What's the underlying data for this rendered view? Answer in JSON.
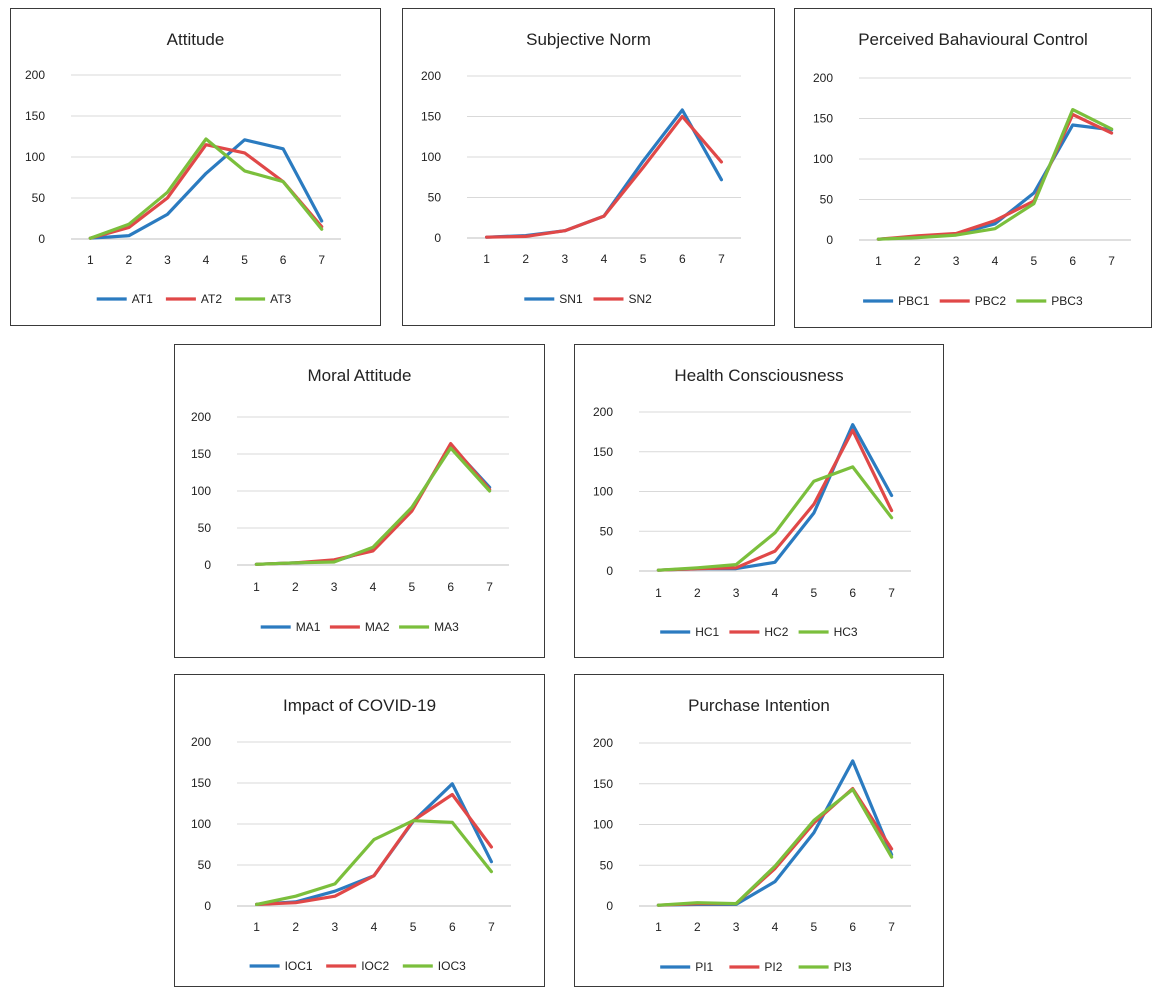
{
  "colors": {
    "series1": "#2b7bc0",
    "series2": "#e04848",
    "series3": "#7bbf3c",
    "grid": "#d9d9d9"
  },
  "chart_data": [
    {
      "type": "line",
      "title": "Attitude",
      "x": [
        1,
        2,
        3,
        4,
        5,
        6,
        7
      ],
      "y_ticks": [
        0,
        50,
        100,
        150,
        200
      ],
      "ylim": [
        0,
        200
      ],
      "grid": true,
      "legend": "bottom",
      "series": [
        {
          "name": "AT1",
          "values": [
            1,
            4,
            30,
            80,
            121,
            110,
            22
          ]
        },
        {
          "name": "AT2",
          "values": [
            1,
            14,
            50,
            115,
            105,
            70,
            15
          ]
        },
        {
          "name": "AT3",
          "values": [
            1,
            18,
            57,
            122,
            83,
            70,
            12
          ]
        }
      ]
    },
    {
      "type": "line",
      "title": "Subjective Norm",
      "x": [
        1,
        2,
        3,
        4,
        5,
        6,
        7
      ],
      "y_ticks": [
        0,
        50,
        100,
        150,
        200
      ],
      "ylim": [
        0,
        200
      ],
      "grid": true,
      "legend": "bottom",
      "series": [
        {
          "name": "SN1",
          "values": [
            1,
            3,
            9,
            27,
            95,
            158,
            72
          ]
        },
        {
          "name": "SN2",
          "values": [
            1,
            2,
            9,
            27,
            87,
            150,
            94
          ]
        }
      ]
    },
    {
      "type": "line",
      "title": "Perceived Bahavioural Control",
      "x": [
        1,
        2,
        3,
        4,
        5,
        6,
        7
      ],
      "y_ticks": [
        0,
        50,
        100,
        150,
        200
      ],
      "ylim": [
        0,
        200
      ],
      "grid": true,
      "legend": "bottom",
      "series": [
        {
          "name": "PBC1",
          "values": [
            1,
            4,
            7,
            20,
            58,
            142,
            136
          ]
        },
        {
          "name": "PBC2",
          "values": [
            1,
            5,
            8,
            24,
            48,
            155,
            132
          ]
        },
        {
          "name": "PBC3",
          "values": [
            1,
            3,
            6,
            14,
            45,
            161,
            137
          ]
        }
      ]
    },
    {
      "type": "line",
      "title": "Moral Attitude",
      "x": [
        1,
        2,
        3,
        4,
        5,
        6,
        7
      ],
      "y_ticks": [
        0,
        50,
        100,
        150,
        200
      ],
      "ylim": [
        0,
        200
      ],
      "grid": true,
      "legend": "bottom",
      "series": [
        {
          "name": "MA1",
          "values": [
            1,
            3,
            5,
            21,
            75,
            162,
            105
          ]
        },
        {
          "name": "MA2",
          "values": [
            1,
            3,
            7,
            19,
            73,
            164,
            102
          ]
        },
        {
          "name": "MA3",
          "values": [
            1,
            3,
            4,
            24,
            78,
            158,
            100
          ]
        }
      ]
    },
    {
      "type": "line",
      "title": "Health Consciousness",
      "x": [
        1,
        2,
        3,
        4,
        5,
        6,
        7
      ],
      "y_ticks": [
        0,
        50,
        100,
        150,
        200
      ],
      "ylim": [
        0,
        200
      ],
      "grid": true,
      "legend": "bottom",
      "series": [
        {
          "name": "HC1",
          "values": [
            1,
            3,
            3,
            11,
            73,
            184,
            95
          ]
        },
        {
          "name": "HC2",
          "values": [
            1,
            3,
            4,
            25,
            84,
            177,
            76
          ]
        },
        {
          "name": "HC3",
          "values": [
            1,
            4,
            8,
            48,
            113,
            131,
            67
          ]
        }
      ]
    },
    {
      "type": "line",
      "title": "Impact of COVID-19",
      "x": [
        1,
        2,
        3,
        4,
        5,
        6,
        7
      ],
      "y_ticks": [
        0,
        50,
        100,
        150,
        200
      ],
      "ylim": [
        0,
        200
      ],
      "grid": true,
      "legend": "bottom",
      "series": [
        {
          "name": "IOC1",
          "values": [
            2,
            5,
            18,
            37,
            103,
            149,
            54
          ]
        },
        {
          "name": "IOC2",
          "values": [
            2,
            4,
            12,
            37,
            104,
            136,
            72
          ]
        },
        {
          "name": "IOC3",
          "values": [
            2,
            12,
            27,
            81,
            104,
            102,
            42
          ]
        }
      ]
    },
    {
      "type": "line",
      "title": "Purchase Intention",
      "x": [
        1,
        2,
        3,
        4,
        5,
        6,
        7
      ],
      "y_ticks": [
        0,
        50,
        100,
        150,
        200
      ],
      "ylim": [
        0,
        200
      ],
      "grid": true,
      "legend": "bottom",
      "series": [
        {
          "name": "PI1",
          "values": [
            1,
            2,
            2,
            30,
            90,
            178,
            63
          ]
        },
        {
          "name": "PI2",
          "values": [
            1,
            3,
            3,
            46,
            102,
            144,
            70
          ]
        },
        {
          "name": "PI3",
          "values": [
            1,
            4,
            3,
            49,
            105,
            143,
            60
          ]
        }
      ]
    }
  ]
}
